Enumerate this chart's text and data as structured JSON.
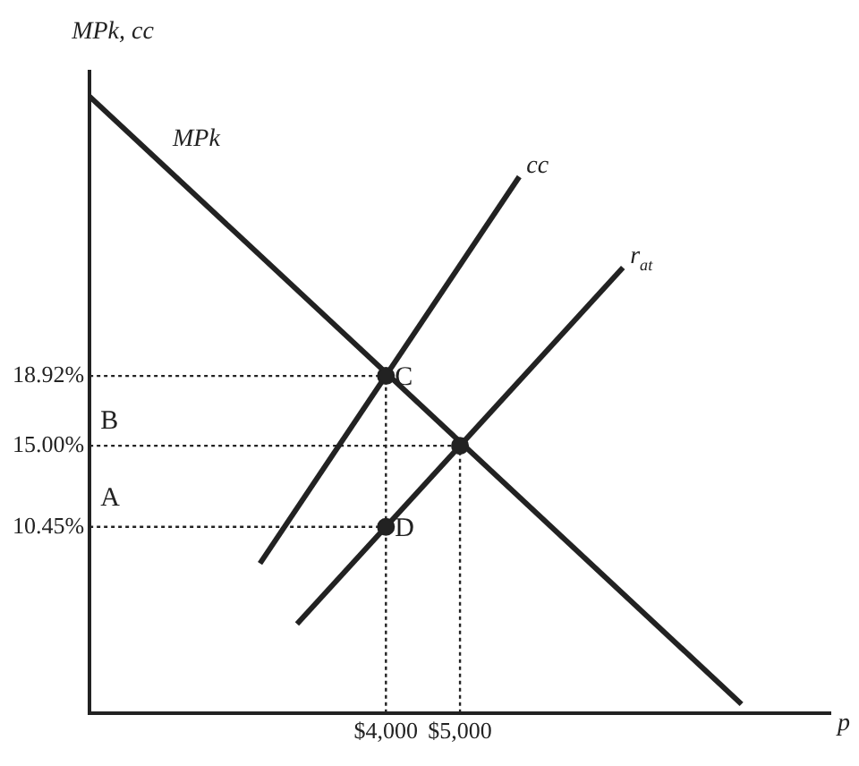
{
  "chart_data": {
    "type": "line",
    "xlabel": "p",
    "ylabel": "MPk, cc",
    "xlim": [
      0,
      10000
    ],
    "ylim": [
      0,
      36
    ],
    "xticks": [
      {
        "value": 4000,
        "label": "$4,000"
      },
      {
        "value": 5000,
        "label": "$5,000"
      }
    ],
    "yticks": [
      {
        "value": 10.45,
        "label": "10.45%"
      },
      {
        "value": 15,
        "label": "15.00%"
      },
      {
        "value": 18.92,
        "label": "18.92%"
      }
    ],
    "grid": false,
    "legend": false,
    "series": [
      {
        "name": "MPk",
        "color": "#222222",
        "x": [
          0,
          8800
        ],
        "values": [
          34.6,
          0.5
        ]
      },
      {
        "name": "cc",
        "color": "#222222",
        "x": [
          2300,
          5800
        ],
        "values": [
          8.4,
          30.1
        ]
      },
      {
        "name": "r$_{at}$",
        "color": "#222222",
        "x": [
          2800,
          7200
        ],
        "values": [
          5.0,
          25.0
        ]
      },
      {
        "type": "line",
        "line_style": "dotted",
        "color": "#222222",
        "x": [
          0,
          4000
        ],
        "values": [
          18.92,
          18.92
        ]
      },
      {
        "type": "line",
        "line_style": "dotted",
        "color": "#222222",
        "x": [
          0,
          5000
        ],
        "values": [
          15,
          15
        ]
      },
      {
        "type": "line",
        "line_style": "dotted",
        "color": "#222222",
        "x": [
          0,
          4000
        ],
        "values": [
          10.45,
          10.45
        ]
      },
      {
        "type": "line",
        "line_style": "dotted",
        "color": "#222222",
        "x": [
          4000,
          4000
        ],
        "values": [
          0,
          18.92
        ]
      },
      {
        "type": "line",
        "line_style": "dotted",
        "color": "#222222",
        "x": [
          5000,
          5000
        ],
        "values": [
          0,
          15
        ]
      },
      {
        "type": "scatter",
        "marker": "circle",
        "color": "#222222",
        "x": [
          4000,
          5000,
          4000
        ],
        "values": [
          18.92,
          15,
          10.45
        ]
      }
    ],
    "annotations": [
      "A",
      "B",
      {
        "text": "C",
        "x": 4000,
        "y": 18.92
      },
      {
        "text": "D",
        "x": 4000,
        "y": 10.45
      }
    ]
  }
}
